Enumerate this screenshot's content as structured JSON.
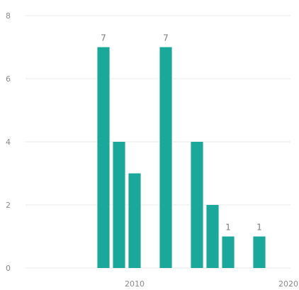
{
  "chart_data": {
    "type": "bar",
    "x": [
      2008,
      2009,
      2010,
      2012,
      2014,
      2015,
      2016,
      2018
    ],
    "values": [
      7,
      4,
      3,
      7,
      4,
      2,
      1,
      1
    ],
    "data_labels": [
      "7",
      "",
      "",
      "7",
      "",
      "",
      "1",
      "1"
    ],
    "title": "",
    "xlabel": "",
    "ylabel": "",
    "xlim": [
      2003,
      2020
    ],
    "ylim": [
      0,
      8
    ],
    "y_ticks": [
      0,
      2,
      4,
      6,
      8
    ],
    "x_ticks": [
      2010,
      2020
    ],
    "grid": true,
    "bar_color": "#1aa89a"
  }
}
